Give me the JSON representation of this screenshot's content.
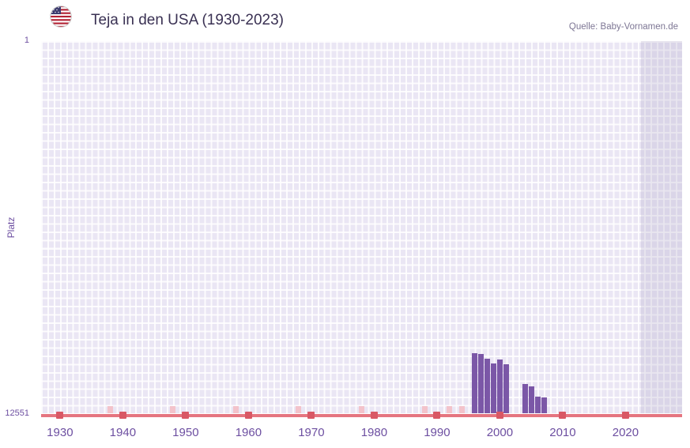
{
  "header": {
    "title": "Teja in den USA (1930-2023)",
    "source": "Quelle: Baby-Vornamen.de",
    "flag_icon": "us-flag-icon"
  },
  "chart_data": {
    "type": "bar",
    "title": "Teja in den USA (1930-2023)",
    "xlabel": "",
    "ylabel": "Platz",
    "y": {
      "best": 1,
      "worst": 12551,
      "inverted": true
    },
    "x_axis": {
      "min_year": 1927,
      "max_year": 2029,
      "ticks": [
        1930,
        1940,
        1950,
        1960,
        1970,
        1980,
        1990,
        2000,
        2010,
        2020
      ]
    },
    "bars": [
      {
        "year": 1996,
        "rank": 10530
      },
      {
        "year": 1997,
        "rank": 10560
      },
      {
        "year": 1998,
        "rank": 10700
      },
      {
        "year": 1999,
        "rank": 10860
      },
      {
        "year": 2000,
        "rank": 10740
      },
      {
        "year": 2001,
        "rank": 10890
      },
      {
        "year": 2004,
        "rank": 11570
      },
      {
        "year": 2005,
        "rank": 11650
      },
      {
        "year": 2006,
        "rank": 11990
      },
      {
        "year": 2007,
        "rank": 12030
      }
    ],
    "baseline_faint_mark_years": [
      1938,
      1948,
      1958,
      1968,
      1978,
      1988,
      1992,
      1994
    ],
    "highlight_band": {
      "from_year": 2022.5,
      "to_year": 2029
    },
    "legend": "none",
    "grid": "on",
    "colors": {
      "bar": "#7b57a7",
      "plot_bg": "#eae6f4",
      "grid": "#ffffff",
      "baseline": "#e57580",
      "decade_tick": "#d95865",
      "faint_mark": "#f3c3cb",
      "band": "rgba(183,177,206,0.30)",
      "axis_text": "#6d4fa1",
      "title_text": "#3a3153",
      "source_text": "#7d7694"
    }
  }
}
